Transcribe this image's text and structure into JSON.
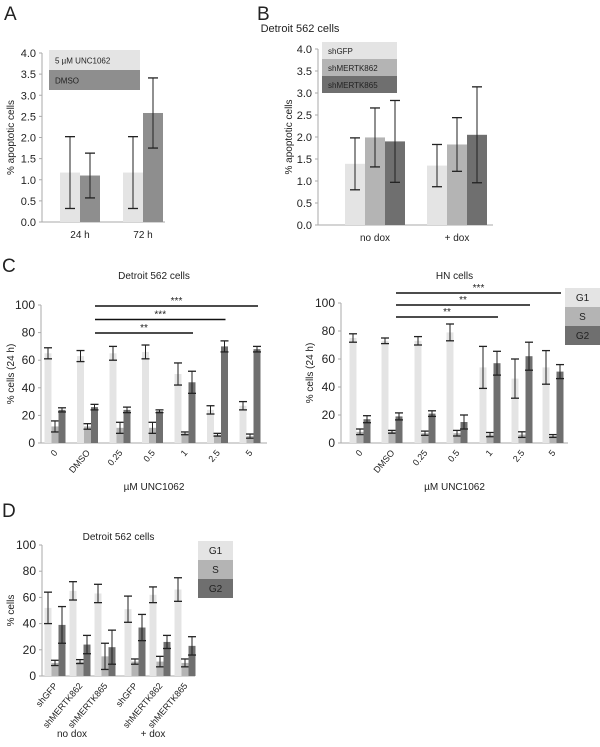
{
  "panel_letters": [
    "A",
    "B",
    "C",
    "D"
  ],
  "top_title": "Detroit 562 cells",
  "colors": {
    "light": "#e4e4e4",
    "mid": "#b4b4b4",
    "dark": "#6f6f6f",
    "dmso_a": "#8e8e8e",
    "axis": "#aaaaaa",
    "error": "#222222"
  },
  "chart_data": [
    {
      "id": "A",
      "type": "bar",
      "title": "",
      "ylabel": "% apoptotic cells",
      "xlabel": "",
      "ylim": [
        0,
        4
      ],
      "ytick_step": 0.5,
      "ytick_decimals": 1,
      "categories": [
        "24 h",
        "72 h"
      ],
      "series": [
        {
          "name": "5 µM UNC1062",
          "color": "#e4e4e4",
          "values": [
            1.17,
            1.17
          ],
          "errors": [
            0.85,
            0.85
          ]
        },
        {
          "name": "DMSO",
          "color": "#8e8e8e",
          "values": [
            1.1,
            2.58
          ],
          "errors": [
            0.53,
            0.83
          ]
        }
      ],
      "legend": "top-left",
      "grid": false
    },
    {
      "id": "B",
      "type": "bar",
      "title": "",
      "ylabel": "% apoptotic cells",
      "xlabel": "",
      "ylim": [
        0,
        4
      ],
      "ytick_step": 0.5,
      "ytick_decimals": 1,
      "categories": [
        "no dox",
        "+ dox"
      ],
      "series": [
        {
          "name": "shGFP",
          "color": "#e4e4e4",
          "values": [
            1.39,
            1.35
          ],
          "errors": [
            0.59,
            0.48
          ]
        },
        {
          "name": "shMERTK862",
          "color": "#b4b4b4",
          "values": [
            1.99,
            1.83
          ],
          "errors": [
            0.67,
            0.61
          ]
        },
        {
          "name": "shMERTK865",
          "color": "#6f6f6f",
          "values": [
            1.9,
            2.05
          ],
          "errors": [
            0.93,
            1.09
          ]
        }
      ],
      "legend": "top-left",
      "grid": false
    },
    {
      "id": "C1",
      "type": "bar",
      "title": "Detroit 562 cells",
      "ylabel": "% cells (24 h)",
      "xlabel": "µM UNC1062",
      "ylim": [
        0,
        100
      ],
      "ytick_step": 20,
      "ytick_decimals": 0,
      "categories": [
        "0",
        "DMSO",
        "0.25",
        "0.5",
        "1",
        "2.5",
        "5"
      ],
      "series": [
        {
          "name": "G1",
          "color": "#e4e4e4",
          "values": [
            65,
            63,
            65,
            66,
            50,
            24,
            27
          ],
          "errors": [
            4,
            4,
            5,
            5,
            8,
            3,
            3
          ]
        },
        {
          "name": "S",
          "color": "#b4b4b4",
          "values": [
            12,
            12,
            11,
            11,
            7,
            6,
            5
          ],
          "errors": [
            4,
            2,
            4,
            4,
            1,
            1,
            1.5
          ]
        },
        {
          "name": "G2",
          "color": "#6f6f6f",
          "values": [
            24,
            26,
            24,
            23,
            44,
            70,
            68
          ],
          "errors": [
            1.5,
            2,
            2,
            1,
            8,
            4,
            2
          ]
        }
      ],
      "significance": [
        {
          "from": "DMSO",
          "to": "5",
          "label": "***"
        },
        {
          "from": "DMSO",
          "to": "2.5",
          "label": "***"
        },
        {
          "from": "DMSO",
          "to": "1",
          "label": "**"
        }
      ],
      "grid": false
    },
    {
      "id": "C2",
      "type": "bar",
      "title": "HN cells",
      "ylabel": "% cells (24 h)",
      "xlabel": "µM UNC1062",
      "ylim": [
        0,
        100
      ],
      "ytick_step": 20,
      "ytick_decimals": 0,
      "categories": [
        "0",
        "DMSO",
        "0.25",
        "0.5",
        "1",
        "2.5",
        "5"
      ],
      "series": [
        {
          "name": "G1",
          "color": "#e4e4e4",
          "values": [
            75,
            73,
            73,
            79,
            54,
            46,
            54
          ],
          "errors": [
            3,
            2,
            3,
            6,
            15,
            14,
            12
          ]
        },
        {
          "name": "S",
          "color": "#b4b4b4",
          "values": [
            8,
            8,
            7,
            7,
            6,
            6,
            5
          ],
          "errors": [
            2,
            1,
            1.5,
            2,
            1.5,
            2,
            1
          ]
        },
        {
          "name": "G2",
          "color": "#6f6f6f",
          "values": [
            17,
            19,
            21,
            15,
            57,
            62,
            51
          ],
          "errors": [
            2.5,
            2.5,
            2,
            5,
            8.5,
            10,
            5
          ]
        }
      ],
      "significance": [
        {
          "from": "DMSO",
          "to": "5",
          "label": "***"
        },
        {
          "from": "DMSO",
          "to": "2.5",
          "label": "**"
        },
        {
          "from": "DMSO",
          "to": "1",
          "label": "**"
        }
      ],
      "legend": "right",
      "grid": false
    },
    {
      "id": "D",
      "type": "bar",
      "title": "Detroit 562 cells",
      "ylabel": "% cells",
      "xlabel": "",
      "ylim": [
        0,
        100
      ],
      "ytick_step": 20,
      "ytick_decimals": 0,
      "categories": [
        "shGFP",
        "shMERTK862",
        "shMERTK865",
        "shGFP",
        "shMERTK862",
        "shMERTK865"
      ],
      "group_labels": [
        "no dox",
        "+ dox"
      ],
      "series": [
        {
          "name": "G1",
          "color": "#e4e4e4",
          "values": [
            52,
            65,
            63,
            51,
            62,
            66
          ],
          "errors": [
            12,
            7,
            7,
            10,
            6,
            9
          ]
        },
        {
          "name": "S",
          "color": "#b4b4b4",
          "values": [
            10,
            11,
            15,
            11,
            11,
            10
          ],
          "errors": [
            2,
            1.5,
            10,
            2,
            4,
            3
          ]
        },
        {
          "name": "G2",
          "color": "#6f6f6f",
          "values": [
            39,
            24,
            22,
            37,
            26,
            23
          ],
          "errors": [
            14,
            7,
            13,
            10,
            5,
            7
          ]
        }
      ],
      "legend": "right",
      "grid": false
    }
  ]
}
